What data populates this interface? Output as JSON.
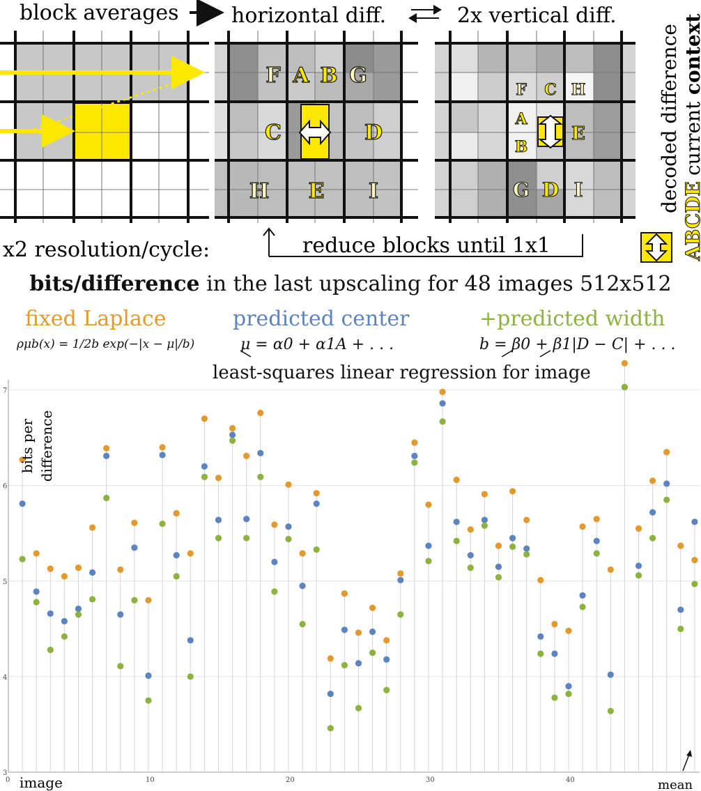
{
  "diagram": {
    "top_labels": {
      "block_averages": "block averages",
      "horizontal_diff": "horizontal diff.",
      "vertical_diff": "2x vertical diff."
    },
    "resolution_label": "x2 resolution/cycle:",
    "reduce_label": "reduce blocks until 1x1",
    "legend": {
      "decoded_difference": "decoded difference",
      "abcde": "ABCDE",
      "current": "current",
      "context": "context"
    },
    "panel2_letters": [
      "F",
      "A",
      "B",
      "G",
      "C",
      "D",
      "H",
      "E",
      "I"
    ],
    "panel3_letters": [
      "F",
      "C",
      "H",
      "A",
      "B",
      "E",
      "G",
      "D",
      "I"
    ]
  },
  "chart_header": {
    "title_bold": "bits/difference",
    "title_rest": "in the last upscaling for 48 images 512x512",
    "methods": {
      "laplace": "fixed Laplace",
      "center": "predicted center",
      "width": "+predicted width"
    },
    "formula_laplace": "ρμb(x) = 1/2b exp(−|x − μ|/b)",
    "formula_center": "μ = α0 + α1A + . . .",
    "formula_width": "b = β0 + β1|D − C| + . . .",
    "regression_note": "least-squares linear regression for image"
  },
  "colors": {
    "laplace": "#e19a2b",
    "center": "#5b84c1",
    "width": "#8cb33d",
    "highlight": "#ffe800"
  },
  "chart_data": {
    "type": "scatter",
    "ylabel": "bits per difference",
    "xlabel": "image",
    "mean_label": "mean",
    "xlim": [
      0,
      49
    ],
    "ylim": [
      3,
      7.3
    ],
    "x_ticks": [
      "0",
      "10",
      "20",
      "30",
      "40"
    ],
    "y_ticks": [
      "3",
      "4",
      "5",
      "6",
      "7"
    ],
    "x": [
      1,
      2,
      3,
      4,
      5,
      6,
      7,
      8,
      9,
      10,
      11,
      12,
      13,
      14,
      15,
      16,
      17,
      18,
      19,
      20,
      21,
      22,
      23,
      24,
      25,
      26,
      27,
      28,
      29,
      30,
      31,
      32,
      33,
      34,
      35,
      36,
      37,
      38,
      39,
      40,
      41,
      42,
      43,
      44,
      45,
      46,
      47,
      48,
      49
    ],
    "series": [
      {
        "name": "fixed Laplace",
        "values": [
          6.27,
          5.29,
          5.13,
          5.05,
          5.14,
          5.56,
          6.39,
          5.12,
          5.61,
          4.8,
          6.4,
          5.71,
          5.29,
          6.7,
          6.08,
          6.6,
          6.31,
          6.76,
          5.59,
          6.01,
          5.29,
          5.92,
          4.19,
          4.87,
          4.46,
          4.72,
          4.38,
          5.08,
          6.45,
          5.8,
          6.98,
          6.06,
          5.54,
          5.91,
          5.37,
          5.94,
          5.64,
          5.01,
          4.55,
          4.48,
          5.57,
          5.65,
          5.12,
          7.28,
          5.55,
          6.05,
          6.35,
          5.37,
          5.22
        ]
      },
      {
        "name": "predicted center",
        "values": [
          5.81,
          4.89,
          4.66,
          4.58,
          4.71,
          5.09,
          6.31,
          4.65,
          5.35,
          4.01,
          6.32,
          5.27,
          4.38,
          6.2,
          5.64,
          6.53,
          5.65,
          6.34,
          5.2,
          5.57,
          4.95,
          5.81,
          3.82,
          4.49,
          4.14,
          4.47,
          4.18,
          5.01,
          6.31,
          5.37,
          6.86,
          5.62,
          5.27,
          5.64,
          5.15,
          5.45,
          5.34,
          4.42,
          4.24,
          3.9,
          4.85,
          5.42,
          4.02,
          7.03,
          5.16,
          5.72,
          6.02,
          4.7,
          5.62
        ]
      },
      {
        "name": "+predicted width",
        "values": [
          5.23,
          4.78,
          4.28,
          4.42,
          4.65,
          4.81,
          5.87,
          4.11,
          4.8,
          3.75,
          5.6,
          5.05,
          4.0,
          6.09,
          5.45,
          6.47,
          5.45,
          6.09,
          4.89,
          5.44,
          4.55,
          5.33,
          3.46,
          4.12,
          3.67,
          4.25,
          3.86,
          4.65,
          6.24,
          5.21,
          6.67,
          5.42,
          5.14,
          5.58,
          5.04,
          5.36,
          5.28,
          4.24,
          3.78,
          3.82,
          4.73,
          5.29,
          3.64,
          7.03,
          5.06,
          5.45,
          5.85,
          4.5,
          4.97
        ]
      }
    ]
  }
}
